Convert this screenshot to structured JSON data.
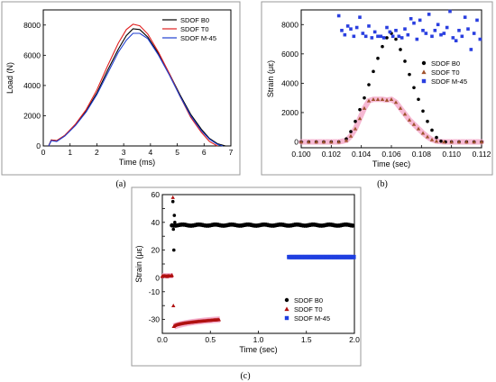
{
  "chart_data": [
    {
      "type": "line",
      "caption": "(a)",
      "xlabel": "Time (ms)",
      "ylabel": "Load (N)",
      "xlim": [
        0,
        7
      ],
      "ylim": [
        0,
        9000
      ],
      "xticks": [
        0,
        1,
        2,
        3,
        4,
        5,
        6,
        7
      ],
      "yticks": [
        0,
        2000,
        4000,
        6000,
        8000
      ],
      "legend_position": "top-right",
      "series": [
        {
          "name": "SDOF B0",
          "color": "#000000",
          "x": [
            0.2,
            0.3,
            0.5,
            0.8,
            1.2,
            1.6,
            2.0,
            2.4,
            2.8,
            3.1,
            3.35,
            3.6,
            3.9,
            4.3,
            4.7,
            5.1,
            5.5,
            5.9,
            6.2,
            6.5,
            6.8
          ],
          "y": [
            0,
            400,
            350,
            700,
            1400,
            2300,
            3500,
            5000,
            6400,
            7300,
            7750,
            7700,
            7200,
            6100,
            4800,
            3400,
            2100,
            1100,
            500,
            150,
            0
          ]
        },
        {
          "name": "SDOF T0",
          "color": "#e02020",
          "x": [
            0.2,
            0.3,
            0.5,
            0.8,
            1.2,
            1.6,
            2.0,
            2.4,
            2.8,
            3.1,
            3.35,
            3.6,
            3.9,
            4.3,
            4.7,
            5.1,
            5.5,
            5.9,
            6.2,
            6.5
          ],
          "y": [
            0,
            400,
            350,
            700,
            1450,
            2400,
            3700,
            5300,
            6800,
            7700,
            8050,
            7950,
            7400,
            6200,
            4800,
            3300,
            1900,
            900,
            300,
            0
          ]
        },
        {
          "name": "SDOF M-45",
          "color": "#1f3fd0",
          "x": [
            0.2,
            0.3,
            0.5,
            0.8,
            1.2,
            1.6,
            2.0,
            2.4,
            2.8,
            3.1,
            3.35,
            3.6,
            3.9,
            4.3,
            4.7,
            5.1,
            5.5,
            5.9,
            6.2,
            6.5,
            6.7
          ],
          "y": [
            0,
            350,
            300,
            650,
            1350,
            2250,
            3400,
            4800,
            6200,
            7000,
            7450,
            7450,
            7100,
            6000,
            4700,
            3300,
            2000,
            1000,
            450,
            100,
            0
          ]
        }
      ]
    },
    {
      "type": "scatter",
      "caption": "(b)",
      "xlabel": "Time (sec)",
      "ylabel": "Strain (με)",
      "xlim": [
        0.1,
        0.112
      ],
      "ylim": [
        -400,
        9000
      ],
      "xticks": [
        0.1,
        0.102,
        0.104,
        0.106,
        0.108,
        0.11,
        0.112
      ],
      "xtick_labels": [
        "0.100",
        "0.102",
        "0.104",
        "0.106",
        "0.108",
        "0.110",
        "0.112"
      ],
      "yticks": [
        0,
        2000,
        4000,
        6000,
        8000
      ],
      "legend_position": "right",
      "series": [
        {
          "name": "SDOF B0",
          "color": "#000000",
          "marker": "circle",
          "x": [
            0.1,
            0.1005,
            0.101,
            0.1015,
            0.102,
            0.1025,
            0.103,
            0.1033,
            0.1036,
            0.1039,
            0.1042,
            0.1045,
            0.1048,
            0.1051,
            0.1054,
            0.1057,
            0.106,
            0.1063,
            0.1066,
            0.1069,
            0.1072,
            0.1075,
            0.1078,
            0.1081,
            0.1084,
            0.1087,
            0.109,
            0.1093,
            0.1096,
            0.11,
            0.1105,
            0.111,
            0.1115,
            0.112
          ],
          "y": [
            0,
            0,
            0,
            0,
            0,
            0,
            200,
            700,
            1400,
            2200,
            3000,
            3900,
            4800,
            5700,
            6500,
            7100,
            7400,
            7000,
            6300,
            5500,
            4600,
            3700,
            2900,
            2100,
            1400,
            800,
            300,
            50,
            0,
            0,
            0,
            0,
            0,
            0
          ]
        },
        {
          "name": "SDOF T0",
          "color": "#a0522d",
          "marker": "triangle",
          "x": [
            0.1,
            0.1005,
            0.101,
            0.1015,
            0.102,
            0.1025,
            0.103,
            0.1033,
            0.1036,
            0.1039,
            0.1042,
            0.1045,
            0.1048,
            0.1051,
            0.1054,
            0.1057,
            0.106,
            0.1063,
            0.1066,
            0.1069,
            0.1072,
            0.1075,
            0.1078,
            0.1081,
            0.1084,
            0.1087,
            0.109,
            0.1095,
            0.11,
            0.1105,
            0.111,
            0.1115,
            0.112
          ],
          "y": [
            0,
            0,
            0,
            0,
            0,
            0,
            100,
            400,
            900,
            1600,
            2300,
            2800,
            2900,
            2900,
            2900,
            2850,
            2900,
            2700,
            2300,
            1900,
            1500,
            1200,
            900,
            600,
            350,
            150,
            50,
            0,
            0,
            0,
            0,
            0,
            0
          ]
        },
        {
          "name": "SDOF M-45",
          "color": "#2a3fe0",
          "marker": "square",
          "x": [
            0.1025,
            0.1027,
            0.1029,
            0.1031,
            0.1033,
            0.1035,
            0.1037,
            0.1039,
            0.1041,
            0.1043,
            0.1045,
            0.1047,
            0.1049,
            0.1051,
            0.1053,
            0.1055,
            0.1057,
            0.1059,
            0.1061,
            0.1063,
            0.1065,
            0.1067,
            0.1069,
            0.1071,
            0.1073,
            0.1075,
            0.1077,
            0.1079,
            0.1081,
            0.1083,
            0.1085,
            0.1087,
            0.1089,
            0.1091,
            0.1093,
            0.1095,
            0.1097,
            0.1099,
            0.1101,
            0.1103,
            0.1105,
            0.1107,
            0.1109,
            0.1111,
            0.1113,
            0.1115,
            0.1117,
            0.1119
          ],
          "y": [
            8600,
            7600,
            7300,
            7900,
            7700,
            7200,
            7800,
            8500,
            7400,
            7200,
            7900,
            7100,
            7500,
            7200,
            7200,
            7100,
            7800,
            7500,
            7200,
            7600,
            7200,
            7100,
            7700,
            7300,
            8400,
            8100,
            7000,
            8300,
            7600,
            7400,
            8700,
            7200,
            7600,
            8000,
            7300,
            7400,
            7800,
            8900,
            7100,
            6900,
            7600,
            7200,
            8500,
            7700,
            6300,
            7400,
            8300,
            7000
          ]
        }
      ]
    },
    {
      "type": "scatter",
      "caption": "(c)",
      "xlabel": "Time (sec)",
      "ylabel": "Strain (με)",
      "xlim": [
        0,
        2
      ],
      "ylim": [
        -40,
        60
      ],
      "xticks": [
        0,
        0.5,
        1.0,
        1.5,
        2.0
      ],
      "xtick_labels": [
        "0.0",
        "0.5",
        "1.0",
        "1.5",
        "2.0"
      ],
      "yticks": [
        -40,
        -30,
        -20,
        -10,
        0,
        10,
        20,
        30,
        40,
        50,
        60
      ],
      "ytick_labels": [
        "",
        "-30",
        "",
        "-10",
        "0",
        "",
        "20",
        "",
        "40",
        "",
        "60"
      ],
      "legend_position": "bottom-right",
      "series": [
        {
          "name": "SDOF B0",
          "color": "#000000",
          "marker": "circle",
          "steady_level": 38,
          "x_start": 0.1,
          "x_end": 2.0,
          "spike_x": [
            0.11,
            0.115,
            0.12,
            0.125,
            0.13
          ],
          "spike_y": [
            55,
            35,
            20,
            45,
            40
          ]
        },
        {
          "name": "SDOF T0",
          "color": "#b01010",
          "marker": "triangle",
          "steady_start": -35,
          "steady_end": -30,
          "x_start": 0.12,
          "x_end": 0.6,
          "spike_x": [
            0.0,
            0.05,
            0.1,
            0.11,
            0.115,
            0.12
          ],
          "spike_y": [
            1,
            1,
            2,
            58,
            -20,
            -35
          ]
        },
        {
          "name": "SDOF M-45",
          "color": "#1f3fe0",
          "marker": "square",
          "steady_level": 15,
          "x_start": 1.32,
          "x_end": 2.0
        }
      ]
    }
  ]
}
